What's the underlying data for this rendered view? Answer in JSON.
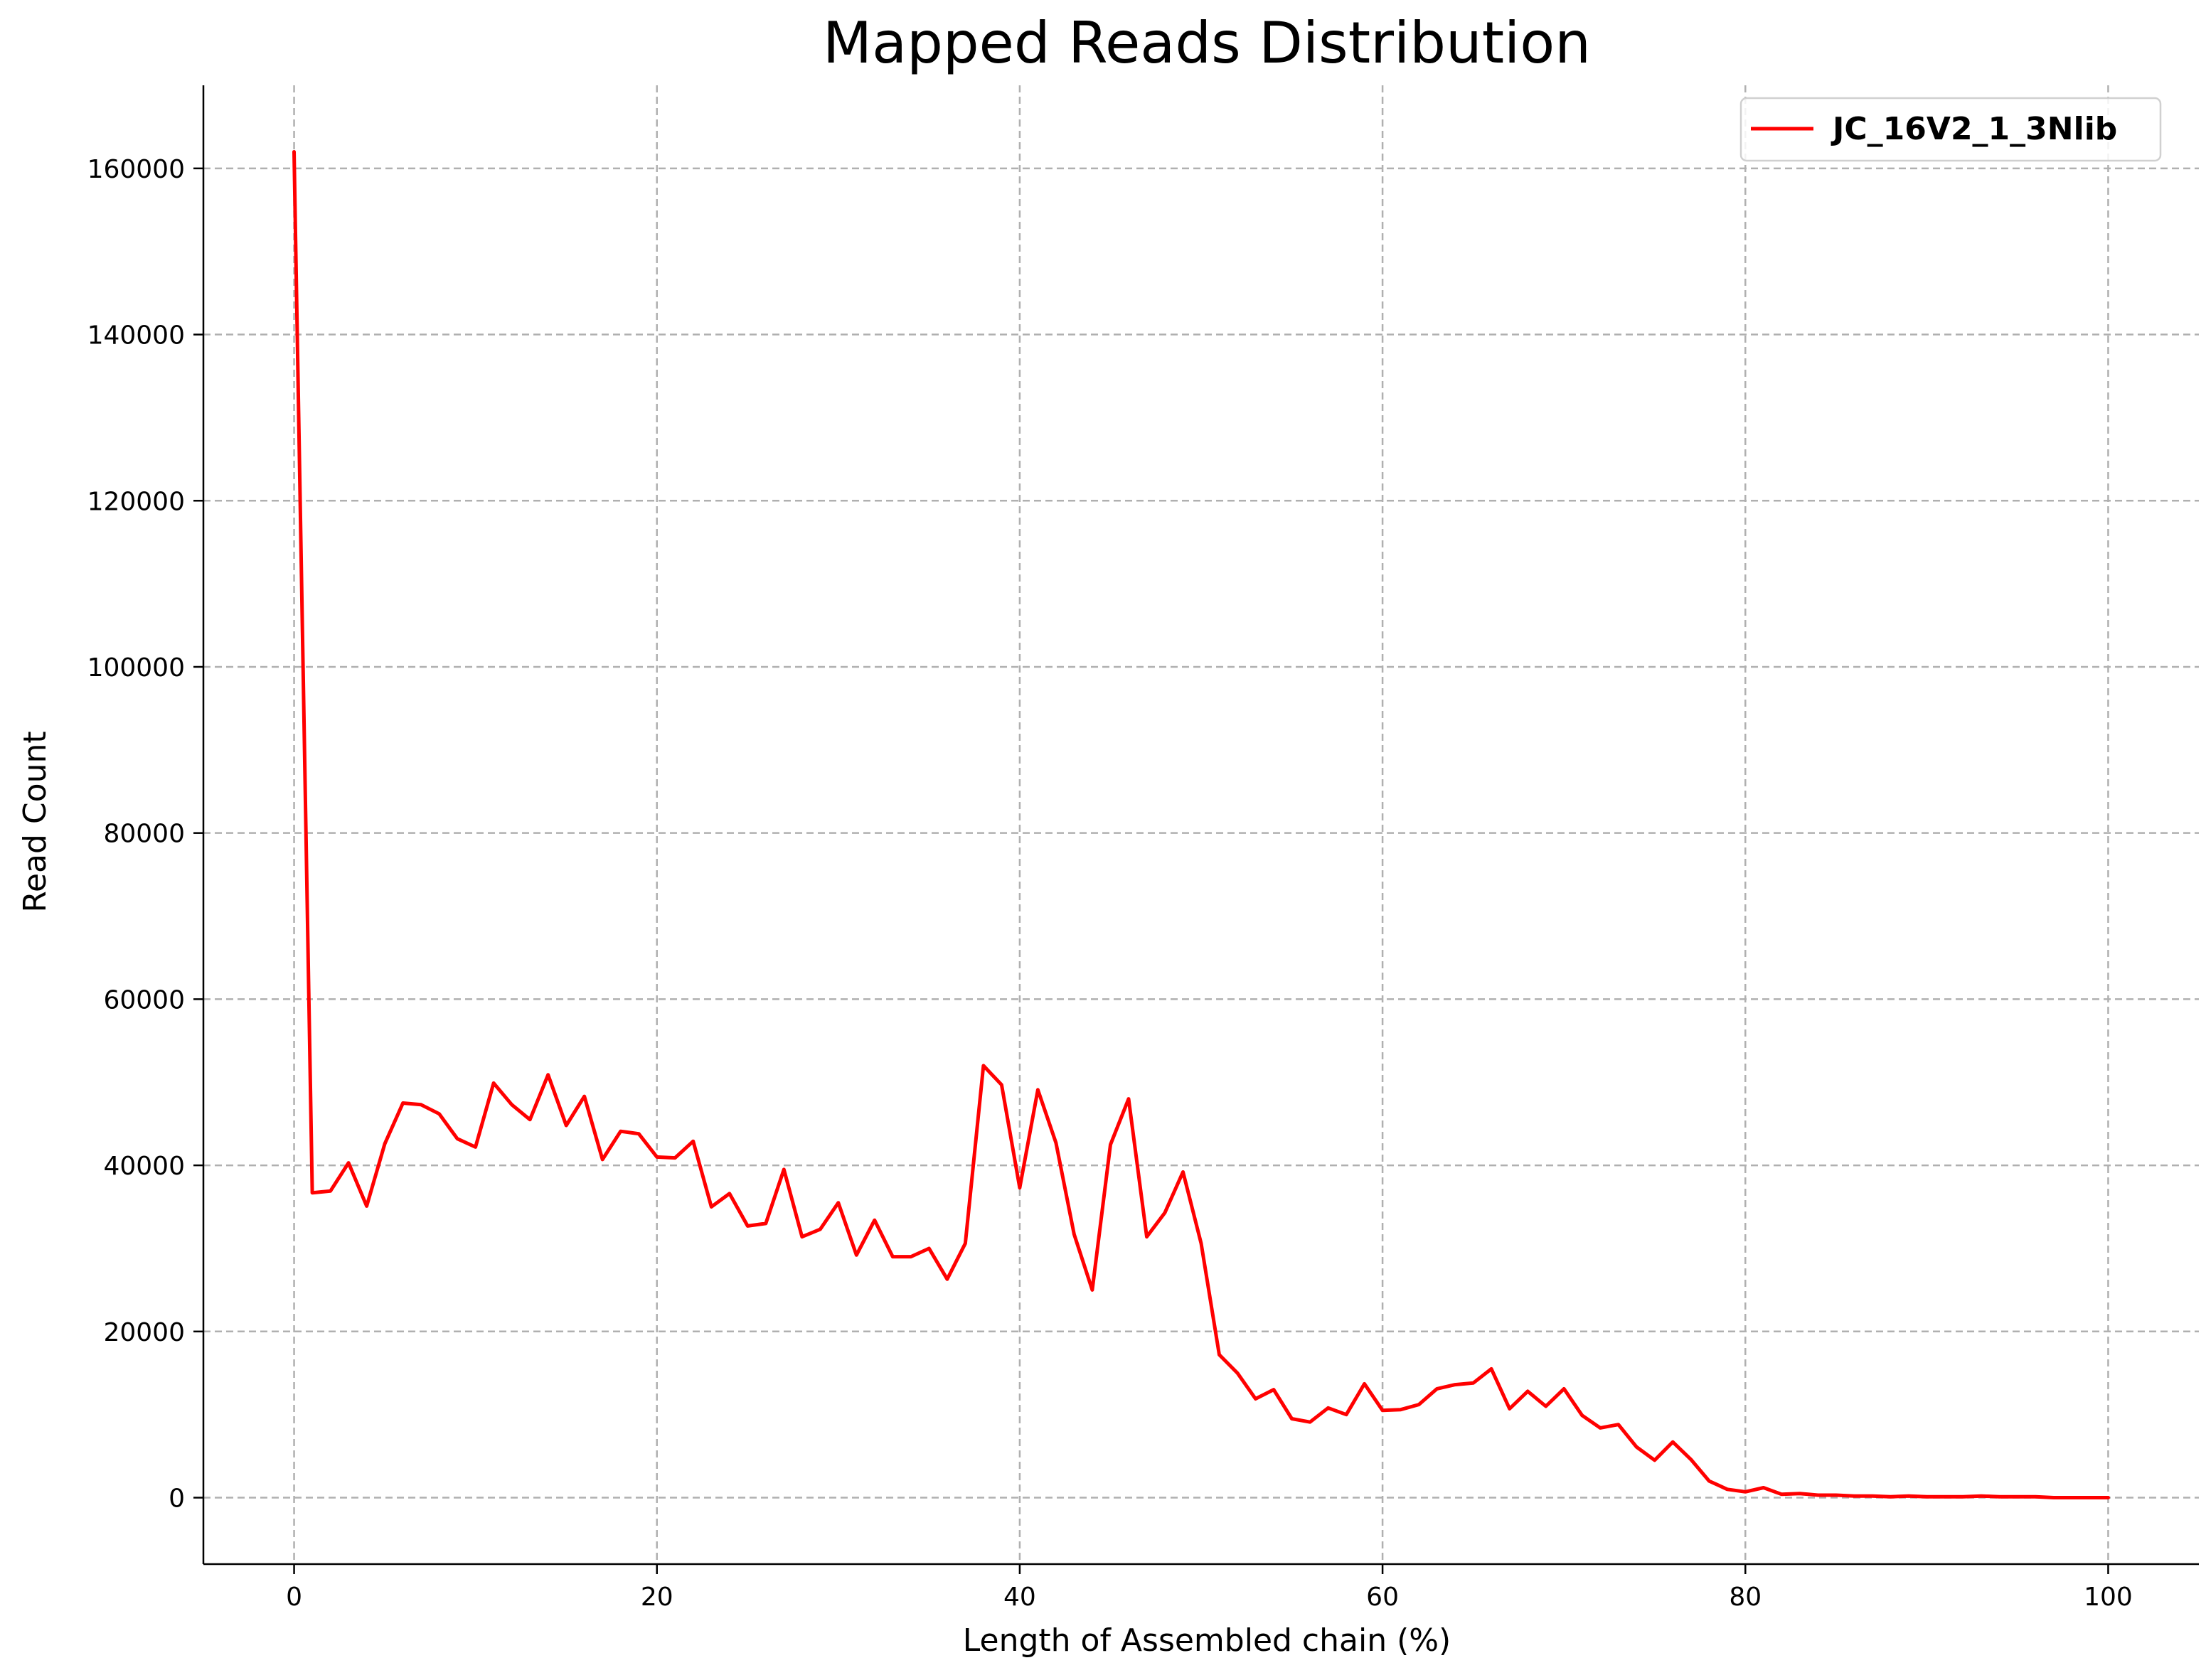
{
  "chart_data": {
    "type": "line",
    "title": "Mapped Reads Distribution",
    "xlabel": "Length of Assembled chain (%)",
    "ylabel": "Read Count",
    "xlim": [
      -5,
      105
    ],
    "ylim": [
      -8000,
      170000
    ],
    "xticks": [
      0,
      20,
      40,
      60,
      80,
      100
    ],
    "yticks": [
      0,
      20000,
      40000,
      60000,
      80000,
      100000,
      120000,
      140000,
      160000
    ],
    "grid": true,
    "legend_position": "top-right",
    "series": [
      {
        "name": "JC_16V2_1_3Nlib",
        "color": "#ff0000",
        "x": [
          0,
          1,
          2,
          3,
          4,
          5,
          6,
          7,
          8,
          9,
          10,
          11,
          12,
          13,
          14,
          15,
          16,
          17,
          18,
          19,
          20,
          21,
          22,
          23,
          24,
          25,
          26,
          27,
          28,
          29,
          30,
          31,
          32,
          33,
          34,
          35,
          36,
          37,
          38,
          39,
          40,
          41,
          42,
          43,
          44,
          45,
          46,
          47,
          48,
          49,
          50,
          51,
          52,
          53,
          54,
          55,
          56,
          57,
          58,
          59,
          60,
          61,
          62,
          63,
          64,
          65,
          66,
          67,
          68,
          69,
          70,
          71,
          72,
          73,
          74,
          75,
          76,
          77,
          78,
          79,
          80,
          81,
          82,
          83,
          84,
          85,
          86,
          87,
          88,
          89,
          90,
          91,
          92,
          93,
          94,
          95,
          96,
          97,
          98,
          99,
          100
        ],
        "values": [
          162000,
          36700,
          36900,
          40300,
          35100,
          42600,
          47500,
          47300,
          46200,
          43200,
          42200,
          49900,
          47300,
          45500,
          50900,
          44800,
          48300,
          40700,
          44100,
          43800,
          41000,
          40900,
          42900,
          35000,
          36600,
          32700,
          33000,
          39500,
          31400,
          32300,
          35500,
          29200,
          33400,
          29000,
          29000,
          30000,
          26300,
          30600,
          52000,
          49700,
          37300,
          49100,
          42700,
          31700,
          25000,
          42500,
          48000,
          31400,
          34300,
          39200,
          30600,
          17200,
          15000,
          11900,
          13000,
          9500,
          9100,
          10800,
          10000,
          13700,
          10500,
          10600,
          11200,
          13100,
          13600,
          13800,
          15500,
          10700,
          12800,
          11000,
          13100,
          9900,
          8400,
          8800,
          6100,
          4500,
          6700,
          4600,
          2000,
          1000,
          700,
          1200,
          400,
          500,
          300,
          300,
          200,
          200,
          100,
          200,
          100,
          100,
          100,
          200,
          100,
          100,
          100,
          0,
          0,
          0,
          0
        ]
      }
    ]
  }
}
